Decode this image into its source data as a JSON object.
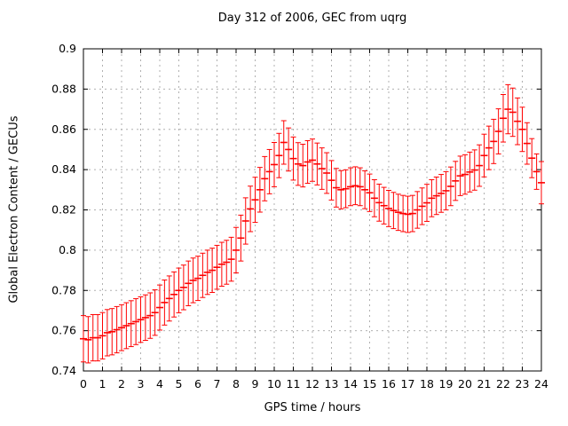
{
  "page": {
    "background": "#ffffff",
    "frame_color": "#000000",
    "grid_color": "#b0b0b0",
    "text_color": "#000000"
  },
  "chart_data": {
    "type": "scatter",
    "subtype": "yerrorbars",
    "title": "Day 312 of 2006, GEC from uqrg",
    "xlabel": "GPS time / hours",
    "ylabel": "Global Electron Content / GECUs",
    "xlim": [
      0,
      24
    ],
    "ylim": [
      0.74,
      0.9
    ],
    "grid": true,
    "legend": "none",
    "series_color": "#ff0000",
    "x_ticks": [
      "0",
      "1",
      "2",
      "3",
      "4",
      "5",
      "6",
      "7",
      "8",
      "9",
      "10",
      "11",
      "12",
      "13",
      "14",
      "15",
      "16",
      "17",
      "18",
      "19",
      "20",
      "21",
      "22",
      "23",
      "24"
    ],
    "x_tick_values": [
      0,
      1,
      2,
      3,
      4,
      5,
      6,
      7,
      8,
      9,
      10,
      11,
      12,
      13,
      14,
      15,
      16,
      17,
      18,
      19,
      20,
      21,
      22,
      23,
      24
    ],
    "y_ticks": [
      "0.74",
      "0.76",
      "0.78",
      "0.8",
      "0.82",
      "0.84",
      "0.86",
      "0.88",
      "0.9"
    ],
    "y_tick_values": [
      0.74,
      0.76,
      0.78,
      0.8,
      0.82,
      0.84,
      0.86,
      0.88,
      0.9
    ],
    "x": [
      0,
      0.25,
      0.5,
      0.75,
      1,
      1.25,
      1.5,
      1.75,
      2,
      2.25,
      2.5,
      2.75,
      3,
      3.25,
      3.5,
      3.75,
      4,
      4.25,
      4.5,
      4.75,
      5,
      5.25,
      5.5,
      5.75,
      6,
      6.25,
      6.5,
      6.75,
      7,
      7.25,
      7.5,
      7.75,
      8,
      8.25,
      8.5,
      8.75,
      9,
      9.25,
      9.5,
      9.75,
      10,
      10.25,
      10.5,
      10.75,
      11,
      11.25,
      11.5,
      11.75,
      12,
      12.25,
      12.5,
      12.75,
      13,
      13.25,
      13.5,
      13.75,
      14,
      14.25,
      14.5,
      14.75,
      15,
      15.25,
      15.5,
      15.75,
      16,
      16.25,
      16.5,
      16.75,
      17,
      17.25,
      17.5,
      17.75,
      18,
      18.25,
      18.5,
      18.75,
      19,
      19.25,
      19.5,
      19.75,
      20,
      20.25,
      20.5,
      20.75,
      21,
      21.25,
      21.5,
      21.75,
      22,
      22.25,
      22.5,
      22.75,
      23,
      23.25,
      23.5,
      23.75,
      24
    ],
    "y": [
      0.756,
      0.7555,
      0.7565,
      0.7565,
      0.7575,
      0.759,
      0.7595,
      0.7605,
      0.7615,
      0.7625,
      0.7635,
      0.7645,
      0.7655,
      0.7665,
      0.7675,
      0.769,
      0.7715,
      0.774,
      0.776,
      0.778,
      0.78,
      0.7815,
      0.7835,
      0.785,
      0.786,
      0.7875,
      0.789,
      0.79,
      0.7915,
      0.793,
      0.794,
      0.7955,
      0.8,
      0.806,
      0.8145,
      0.8205,
      0.825,
      0.83,
      0.8355,
      0.839,
      0.8425,
      0.847,
      0.8535,
      0.85,
      0.8455,
      0.8428,
      0.842,
      0.8438,
      0.8447,
      0.8428,
      0.8405,
      0.8383,
      0.8347,
      0.831,
      0.83,
      0.8305,
      0.8315,
      0.832,
      0.8315,
      0.83,
      0.8285,
      0.8258,
      0.8236,
      0.8221,
      0.8207,
      0.8197,
      0.8188,
      0.8182,
      0.8178,
      0.8182,
      0.82,
      0.8218,
      0.8235,
      0.8258,
      0.827,
      0.8282,
      0.8295,
      0.8317,
      0.8344,
      0.8369,
      0.8376,
      0.8388,
      0.8398,
      0.842,
      0.847,
      0.8508,
      0.854,
      0.859,
      0.8655,
      0.87,
      0.8685,
      0.864,
      0.86,
      0.853,
      0.8457,
      0.839,
      0.8335
    ],
    "yerr": [
      0.0115,
      0.0115,
      0.0115,
      0.0115,
      0.0115,
      0.0115,
      0.0115,
      0.0115,
      0.0114,
      0.0114,
      0.0114,
      0.0114,
      0.0113,
      0.0113,
      0.0113,
      0.0113,
      0.0112,
      0.0112,
      0.0112,
      0.0112,
      0.0111,
      0.0111,
      0.0111,
      0.0111,
      0.011,
      0.011,
      0.011,
      0.011,
      0.0109,
      0.0109,
      0.0109,
      0.0109,
      0.0113,
      0.0114,
      0.0115,
      0.0113,
      0.0112,
      0.0111,
      0.011,
      0.011,
      0.011,
      0.011,
      0.0108,
      0.0107,
      0.0107,
      0.0106,
      0.0106,
      0.0106,
      0.0105,
      0.0104,
      0.0103,
      0.0101,
      0.0098,
      0.0096,
      0.0095,
      0.0094,
      0.0094,
      0.0094,
      0.0094,
      0.0094,
      0.0093,
      0.0092,
      0.0092,
      0.0091,
      0.009,
      0.009,
      0.009,
      0.009,
      0.009,
      0.009,
      0.0091,
      0.0091,
      0.0092,
      0.0092,
      0.0093,
      0.0094,
      0.0095,
      0.0096,
      0.0097,
      0.0098,
      0.0098,
      0.0099,
      0.01,
      0.0103,
      0.0106,
      0.0108,
      0.011,
      0.0112,
      0.0118,
      0.0122,
      0.012,
      0.0116,
      0.011,
      0.0103,
      0.0097,
      0.0088,
      0.0105
    ]
  }
}
